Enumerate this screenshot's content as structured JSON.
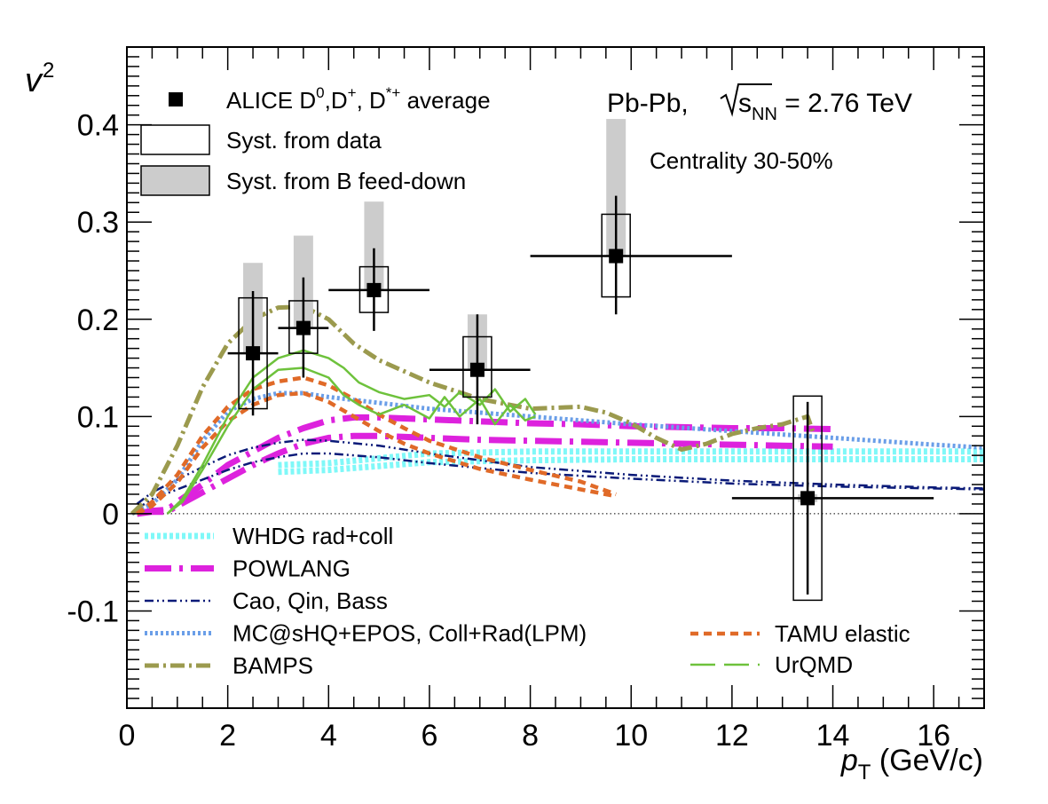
{
  "chart_data": {
    "type": "scatter",
    "xlabel": {
      "main": "p",
      "sub": "T",
      "unit": " (GeV/c)"
    },
    "ylabel": {
      "main": "v",
      "sub": "2"
    },
    "xlim": [
      0,
      17
    ],
    "ylim": [
      -0.2,
      0.48
    ],
    "x_ticks": [
      "0",
      "2",
      "4",
      "6",
      "8",
      "10",
      "12",
      "14",
      "16"
    ],
    "y_ticks": [
      "-0.1",
      "0",
      "0.1",
      "0.2",
      "0.3",
      "0.4"
    ],
    "grid": false,
    "annotations": {
      "system": "Pb-Pb, ",
      "energy_symbol": "s",
      "energy_sub": "NN",
      "energy_value": " = 2.76 TeV",
      "centrality": "Centrality 30-50%"
    },
    "data_legend": {
      "points_label": "ALICE D",
      "points_label_suffix": ",D",
      "points_label_suffix2": ", D",
      "points_label_end": " average",
      "sup_0": "0",
      "sup_plus": "+",
      "sup_star": "*+",
      "syst_data_label": "Syst. from data",
      "syst_feeddown_label": "Syst. from B feed-down"
    },
    "measurements": [
      {
        "x": 2.5,
        "xerr": [
          2.0,
          3.0
        ],
        "y": 0.165,
        "stat": [
          0.101,
          0.229
        ],
        "syst_data": [
          0.108,
          0.222
        ],
        "syst_b": [
          0.165,
          0.258
        ]
      },
      {
        "x": 3.5,
        "xerr": [
          3.0,
          4.0
        ],
        "y": 0.191,
        "stat": [
          0.14,
          0.243
        ],
        "syst_data": [
          0.165,
          0.219
        ],
        "syst_b": [
          0.191,
          0.286
        ]
      },
      {
        "x": 4.9,
        "xerr": [
          4.0,
          6.0
        ],
        "y": 0.23,
        "stat": [
          0.188,
          0.273
        ],
        "syst_data": [
          0.207,
          0.254
        ],
        "syst_b": [
          0.23,
          0.321
        ]
      },
      {
        "x": 6.95,
        "xerr": [
          6.0,
          8.0
        ],
        "y": 0.148,
        "stat": [
          0.092,
          0.205
        ],
        "syst_data": [
          0.12,
          0.182
        ],
        "syst_b": [
          0.148,
          0.205
        ]
      },
      {
        "x": 9.7,
        "xerr": [
          8.0,
          12.0
        ],
        "y": 0.265,
        "stat": [
          0.205,
          0.327
        ],
        "syst_data": [
          0.223,
          0.308
        ],
        "syst_b": [
          0.265,
          0.406
        ]
      },
      {
        "x": 13.5,
        "xerr": [
          12.0,
          16.0
        ],
        "y": 0.016,
        "stat": [
          -0.083,
          0.115
        ],
        "syst_data": [
          -0.089,
          0.121
        ],
        "syst_b": [
          0.012,
          0.02
        ]
      }
    ],
    "models": [
      {
        "name": "WHDG rad+coll",
        "color": "#7ff8f8",
        "width": 7,
        "dash": "4,3",
        "legend_col": 0,
        "bands": [
          [
            [
              3.0,
              0.05
            ],
            [
              4,
              0.052
            ],
            [
              5,
              0.057
            ],
            [
              6,
              0.062
            ],
            [
              8,
              0.064
            ],
            [
              10,
              0.064
            ],
            [
              12,
              0.064
            ],
            [
              14,
              0.064
            ],
            [
              17,
              0.064
            ]
          ],
          [
            [
              3.0,
              0.043
            ],
            [
              4,
              0.045
            ],
            [
              5,
              0.049
            ],
            [
              6,
              0.053
            ],
            [
              8,
              0.055
            ],
            [
              10,
              0.056
            ],
            [
              12,
              0.056
            ],
            [
              14,
              0.056
            ],
            [
              17,
              0.056
            ]
          ]
        ]
      },
      {
        "name": "POWLANG",
        "color": "#dd22dd",
        "width": 7,
        "dash": "30,9,4,9",
        "legend_col": 0,
        "bands": [
          [
            [
              0.2,
              0
            ],
            [
              0.5,
              0.003
            ],
            [
              0.8,
              0.004
            ],
            [
              1,
              0.012
            ],
            [
              1.5,
              0.03
            ],
            [
              2,
              0.05
            ],
            [
              2.5,
              0.064
            ],
            [
              3,
              0.078
            ],
            [
              3.5,
              0.088
            ],
            [
              4,
              0.096
            ],
            [
              4.5,
              0.099
            ],
            [
              5,
              0.099
            ],
            [
              6,
              0.097
            ],
            [
              7,
              0.095
            ],
            [
              8,
              0.093
            ],
            [
              9,
              0.092
            ],
            [
              10,
              0.09
            ],
            [
              11,
              0.089
            ],
            [
              12,
              0.088
            ],
            [
              13,
              0.088
            ],
            [
              14,
              0.087
            ]
          ],
          [
            [
              0.2,
              0
            ],
            [
              0.5,
              0.002
            ],
            [
              0.8,
              0.002
            ],
            [
              1,
              0.008
            ],
            [
              1.5,
              0.022
            ],
            [
              2,
              0.036
            ],
            [
              2.5,
              0.05
            ],
            [
              3,
              0.062
            ],
            [
              3.5,
              0.072
            ],
            [
              4,
              0.078
            ],
            [
              4.5,
              0.08
            ],
            [
              5,
              0.08
            ],
            [
              6,
              0.078
            ],
            [
              7,
              0.076
            ],
            [
              8,
              0.075
            ],
            [
              9,
              0.074
            ],
            [
              10,
              0.073
            ],
            [
              11,
              0.072
            ],
            [
              12,
              0.071
            ],
            [
              13,
              0.07
            ],
            [
              14,
              0.069
            ]
          ]
        ]
      },
      {
        "name": "Cao, Qin, Bass",
        "color": "#0a1a78",
        "width": 2.5,
        "dash": "10,4,2,4,2,4",
        "legend_col": 0,
        "bands": [
          [
            [
              0.2,
              0.01
            ],
            [
              0.5,
              0.022
            ],
            [
              1,
              0.035
            ],
            [
              1.5,
              0.048
            ],
            [
              2,
              0.06
            ],
            [
              2.5,
              0.068
            ],
            [
              3,
              0.073
            ],
            [
              3.5,
              0.076
            ],
            [
              4,
              0.075
            ],
            [
              5,
              0.07
            ],
            [
              6,
              0.062
            ],
            [
              8,
              0.048
            ],
            [
              10,
              0.04
            ],
            [
              12,
              0.034
            ],
            [
              14,
              0.03
            ],
            [
              16,
              0.027
            ],
            [
              17,
              0.026
            ]
          ],
          [
            [
              0.2,
              0.005
            ],
            [
              0.5,
              0.015
            ],
            [
              1,
              0.025
            ],
            [
              1.5,
              0.035
            ],
            [
              2,
              0.045
            ],
            [
              2.5,
              0.053
            ],
            [
              3,
              0.058
            ],
            [
              3.5,
              0.062
            ],
            [
              4,
              0.062
            ],
            [
              5,
              0.058
            ],
            [
              6,
              0.052
            ],
            [
              8,
              0.042
            ],
            [
              10,
              0.036
            ],
            [
              12,
              0.031
            ],
            [
              14,
              0.028
            ],
            [
              16,
              0.026
            ],
            [
              17,
              0.025
            ]
          ]
        ]
      },
      {
        "name": "MC@sHQ+EPOS, Coll+Rad(LPM)",
        "color": "#6a9ee8",
        "width": 5,
        "dash": "3,3",
        "legend_col": 0,
        "bands": [
          [
            [
              0.1,
              0
            ],
            [
              0.5,
              0.01
            ],
            [
              1,
              0.035
            ],
            [
              1.5,
              0.075
            ],
            [
              2,
              0.105
            ],
            [
              2.5,
              0.118
            ],
            [
              3,
              0.124
            ],
            [
              3.5,
              0.124
            ],
            [
              4,
              0.12
            ],
            [
              5,
              0.114
            ],
            [
              6,
              0.108
            ],
            [
              8,
              0.1
            ],
            [
              10,
              0.092
            ],
            [
              12,
              0.085
            ],
            [
              14,
              0.078
            ],
            [
              16,
              0.071
            ],
            [
              17,
              0.068
            ]
          ]
        ]
      },
      {
        "name": "BAMPS",
        "color": "#9b9a4e",
        "width": 5,
        "dash": "16,5,3,5",
        "legend_col": 0,
        "bands": [
          [
            [
              0.1,
              0
            ],
            [
              0.5,
              0.02
            ],
            [
              1,
              0.07
            ],
            [
              1.5,
              0.13
            ],
            [
              2,
              0.175
            ],
            [
              2.5,
              0.2
            ],
            [
              3,
              0.212
            ],
            [
              3.5,
              0.213
            ],
            [
              4,
              0.2
            ],
            [
              4.5,
              0.175
            ],
            [
              5,
              0.158
            ],
            [
              6,
              0.135
            ],
            [
              7,
              0.118
            ],
            [
              8,
              0.108
            ],
            [
              9,
              0.11
            ],
            [
              9.5,
              0.104
            ],
            [
              10,
              0.093
            ],
            [
              10.5,
              0.078
            ],
            [
              11,
              0.066
            ],
            [
              11.5,
              0.072
            ],
            [
              12,
              0.082
            ],
            [
              12.5,
              0.088
            ],
            [
              13,
              0.092
            ],
            [
              13.5,
              0.1
            ],
            [
              13.6,
              0.085
            ]
          ]
        ]
      },
      {
        "name": "TAMU elastic",
        "color": "#e06a28",
        "width": 4.5,
        "dash": "9,6",
        "legend_col": 1,
        "bands": [
          [
            [
              0.2,
              0
            ],
            [
              0.5,
              0.012
            ],
            [
              1,
              0.04
            ],
            [
              1.5,
              0.08
            ],
            [
              2,
              0.11
            ],
            [
              2.5,
              0.128
            ],
            [
              3,
              0.136
            ],
            [
              3.5,
              0.14
            ],
            [
              4,
              0.132
            ],
            [
              4.5,
              0.118
            ],
            [
              5,
              0.102
            ],
            [
              5.5,
              0.088
            ],
            [
              6,
              0.075
            ],
            [
              7,
              0.058
            ],
            [
              8,
              0.045
            ],
            [
              9,
              0.033
            ],
            [
              9.7,
              0.02
            ]
          ],
          [
            [
              0.2,
              0
            ],
            [
              0.5,
              0.008
            ],
            [
              1,
              0.032
            ],
            [
              1.5,
              0.068
            ],
            [
              2,
              0.095
            ],
            [
              2.5,
              0.112
            ],
            [
              3,
              0.122
            ],
            [
              3.5,
              0.124
            ],
            [
              4,
              0.115
            ],
            [
              4.5,
              0.1
            ],
            [
              5,
              0.085
            ],
            [
              5.5,
              0.072
            ],
            [
              6,
              0.062
            ],
            [
              7,
              0.046
            ],
            [
              8,
              0.035
            ],
            [
              9,
              0.025
            ],
            [
              9.7,
              0.018
            ]
          ]
        ]
      },
      {
        "name": "UrQMD",
        "color": "#6ec23c",
        "width": 2.5,
        "dash": "0",
        "legend_col": 1,
        "bands": [
          [
            [
              0.8,
              0
            ],
            [
              1.1,
              0.015
            ],
            [
              1.5,
              0.05
            ],
            [
              2,
              0.1
            ],
            [
              2.5,
              0.14
            ],
            [
              3,
              0.16
            ],
            [
              3.5,
              0.168
            ],
            [
              4,
              0.16
            ],
            [
              4.3,
              0.15
            ],
            [
              4.6,
              0.135
            ],
            [
              5,
              0.125
            ],
            [
              5.5,
              0.118
            ],
            [
              6,
              0.122
            ],
            [
              6.3,
              0.11
            ],
            [
              6.6,
              0.125
            ],
            [
              7,
              0.112
            ],
            [
              7.3,
              0.128
            ],
            [
              7.6,
              0.105
            ],
            [
              7.9,
              0.118
            ],
            [
              8.1,
              0.102
            ]
          ],
          [
            [
              0.8,
              0
            ],
            [
              1.1,
              0.012
            ],
            [
              1.5,
              0.045
            ],
            [
              2,
              0.09
            ],
            [
              2.5,
              0.128
            ],
            [
              3,
              0.148
            ],
            [
              3.5,
              0.15
            ],
            [
              4,
              0.14
            ],
            [
              4.3,
              0.122
            ],
            [
              4.6,
              0.112
            ],
            [
              5,
              0.102
            ],
            [
              5.5,
              0.112
            ],
            [
              6,
              0.098
            ],
            [
              6.3,
              0.12
            ],
            [
              6.6,
              0.1
            ],
            [
              7,
              0.118
            ],
            [
              7.3,
              0.092
            ],
            [
              7.6,
              0.112
            ],
            [
              7.9,
              0.096
            ],
            [
              8.1,
              0.1
            ]
          ]
        ]
      }
    ]
  }
}
